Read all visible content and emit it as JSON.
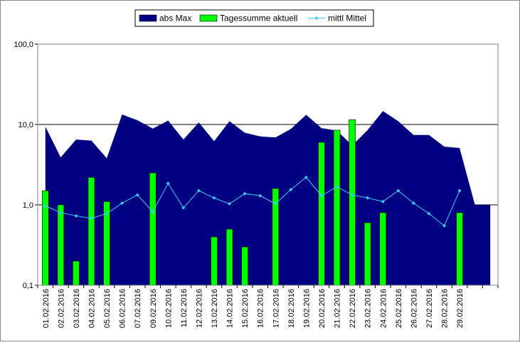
{
  "chart_data": {
    "type": "combo",
    "categories": [
      "01.02.2016",
      "02.02.2016",
      "03.02.2016",
      "04.02.2016",
      "05.02.2016",
      "06.02.2016",
      "07.02.2016",
      "09.02.2016",
      "10.02.2016",
      "11.02.2016",
      "12.02.2016",
      "13.02.2016",
      "14.02.2016",
      "15.02.2016",
      "16.02.2016",
      "17.02.2016",
      "18.02.2016",
      "19.02.2016",
      "20.02.2016",
      "21.02.2016",
      "22.02.2016",
      "23.02.2016",
      "24.02.2016",
      "25.02.2016",
      "26.02.2016",
      "27.02.2016",
      "28.02.2016",
      "29.02.2016",
      null,
      null
    ],
    "series": [
      {
        "name": "abs Max",
        "type": "area",
        "color": "#000080",
        "values": [
          9.4,
          3.9,
          6.5,
          6.3,
          3.8,
          13.3,
          11.3,
          8.9,
          11.2,
          6.5,
          10.6,
          6.2,
          11.0,
          7.9,
          7.1,
          6.9,
          8.8,
          13.2,
          9.0,
          8.4,
          5.5,
          8.5,
          14.7,
          11.0,
          7.4,
          7.4,
          5.3,
          5.1,
          1.0,
          1.0
        ]
      },
      {
        "name": "Tagessumme aktuell",
        "type": "bar",
        "color": "#00ff00",
        "values": [
          1.5,
          1.0,
          0.2,
          2.2,
          1.1,
          null,
          null,
          2.5,
          null,
          null,
          null,
          0.4,
          0.5,
          0.3,
          null,
          1.6,
          null,
          null,
          6.0,
          8.5,
          11.5,
          0.6,
          0.8,
          null,
          null,
          null,
          null,
          0.8,
          null,
          null
        ]
      },
      {
        "name": "mittl Mittel",
        "type": "line",
        "color": "#33ccff",
        "values": [
          0.97,
          0.8,
          0.73,
          0.68,
          0.78,
          1.05,
          1.33,
          0.82,
          1.85,
          0.92,
          1.5,
          1.22,
          1.03,
          1.38,
          1.3,
          1.03,
          1.55,
          2.2,
          1.3,
          1.68,
          1.33,
          1.22,
          1.1,
          1.5,
          1.05,
          0.78,
          0.55,
          1.5,
          null,
          null
        ]
      }
    ],
    "ylim": [
      0.1,
      100
    ],
    "yticks": [
      {
        "value": 0.1,
        "label": "0,1"
      },
      {
        "value": 1,
        "label": "1,0"
      },
      {
        "value": 10,
        "label": "10,0"
      },
      {
        "value": 100,
        "label": "100,0"
      }
    ],
    "log_scale": true,
    "grid": true,
    "legend": "top"
  }
}
